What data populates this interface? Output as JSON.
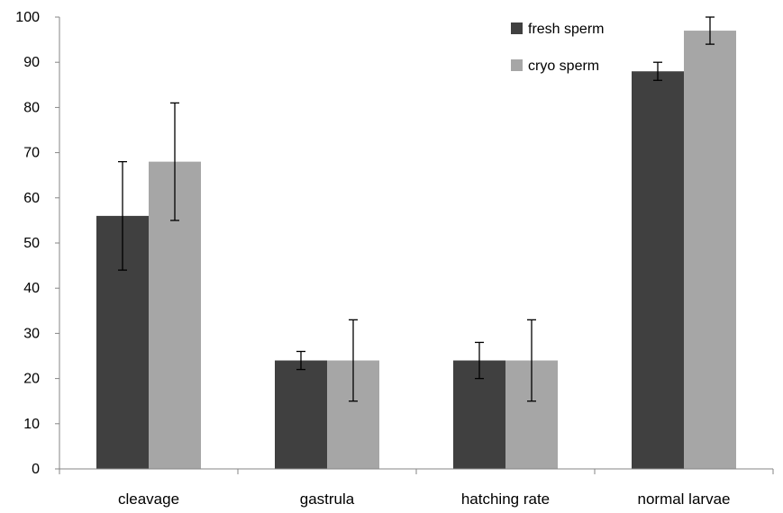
{
  "chart_data": {
    "type": "bar",
    "categories": [
      "cleavage",
      "gastrula",
      "hatching rate",
      "normal larvae"
    ],
    "series": [
      {
        "name": "fresh sperm",
        "values": [
          56,
          24,
          24,
          88
        ],
        "error_low": [
          44,
          22,
          20,
          86
        ],
        "error_high": [
          68,
          26,
          28,
          90
        ],
        "color": "#404040"
      },
      {
        "name": "cryo sperm",
        "values": [
          68,
          24,
          24,
          97
        ],
        "error_low": [
          55,
          15,
          15,
          94
        ],
        "error_high": [
          81,
          33,
          33,
          100
        ],
        "color": "#a6a6a6"
      }
    ],
    "title": "",
    "xlabel": "",
    "ylabel": "",
    "ylim": [
      0,
      100
    ],
    "yticks": [
      0,
      10,
      20,
      30,
      40,
      50,
      60,
      70,
      80,
      90,
      100
    ],
    "grid": false,
    "legend_position": "top-right"
  }
}
